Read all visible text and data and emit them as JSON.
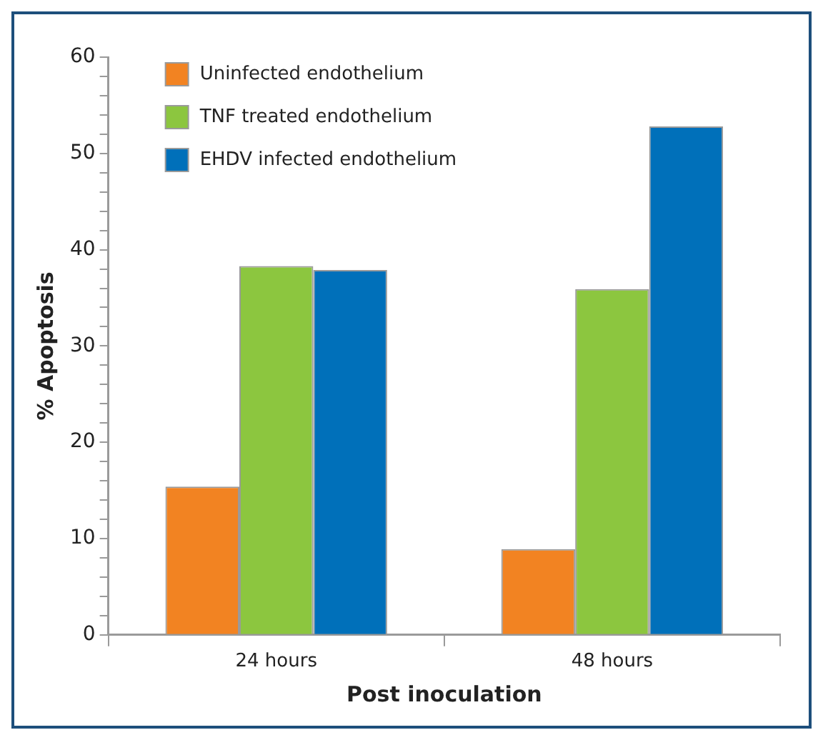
{
  "chart_data": {
    "type": "bar",
    "xlabel": "Post inoculation",
    "ylabel": "% Apoptosis",
    "categories": [
      "24 hours",
      "48 hours"
    ],
    "series": [
      {
        "name": "Uninfected endothelium",
        "color": "#f28322",
        "values": [
          15.4,
          8.9
        ]
      },
      {
        "name": "TNF treated endothelium",
        "color": "#8cc63f",
        "values": [
          38.3,
          35.9
        ]
      },
      {
        "name": "EHDV infected endothelium",
        "color": "#0070ba",
        "values": [
          37.9,
          52.8
        ]
      }
    ],
    "ylim": [
      0,
      60
    ],
    "yticks": [
      0,
      {
        "value": 2,
        "label": null
      },
      {
        "value": 4,
        "label": null
      },
      {
        "value": 6,
        "label": null
      },
      {
        "value": 8,
        "label": null
      },
      10,
      {
        "value": 12,
        "label": null
      },
      {
        "value": 14,
        "label": null
      },
      {
        "value": 16,
        "label": null
      },
      {
        "value": 18,
        "label": null
      },
      20,
      {
        "value": 22,
        "label": null
      },
      {
        "value": 24,
        "label": null
      },
      {
        "value": 26,
        "label": null
      },
      {
        "value": 28,
        "label": null
      },
      30,
      {
        "value": 32,
        "label": null
      },
      {
        "value": 34,
        "label": null
      },
      {
        "value": 36,
        "label": null
      },
      {
        "value": 38,
        "label": null
      },
      40,
      {
        "value": 42,
        "label": null
      },
      {
        "value": 44,
        "label": null
      },
      {
        "value": 46,
        "label": null
      },
      {
        "value": 48,
        "label": null
      },
      50,
      {
        "value": 52,
        "label": null
      },
      {
        "value": 54,
        "label": null
      },
      {
        "value": 56,
        "label": null
      },
      {
        "value": 58,
        "label": null
      },
      60
    ],
    "grid": false,
    "legend": "top left"
  }
}
